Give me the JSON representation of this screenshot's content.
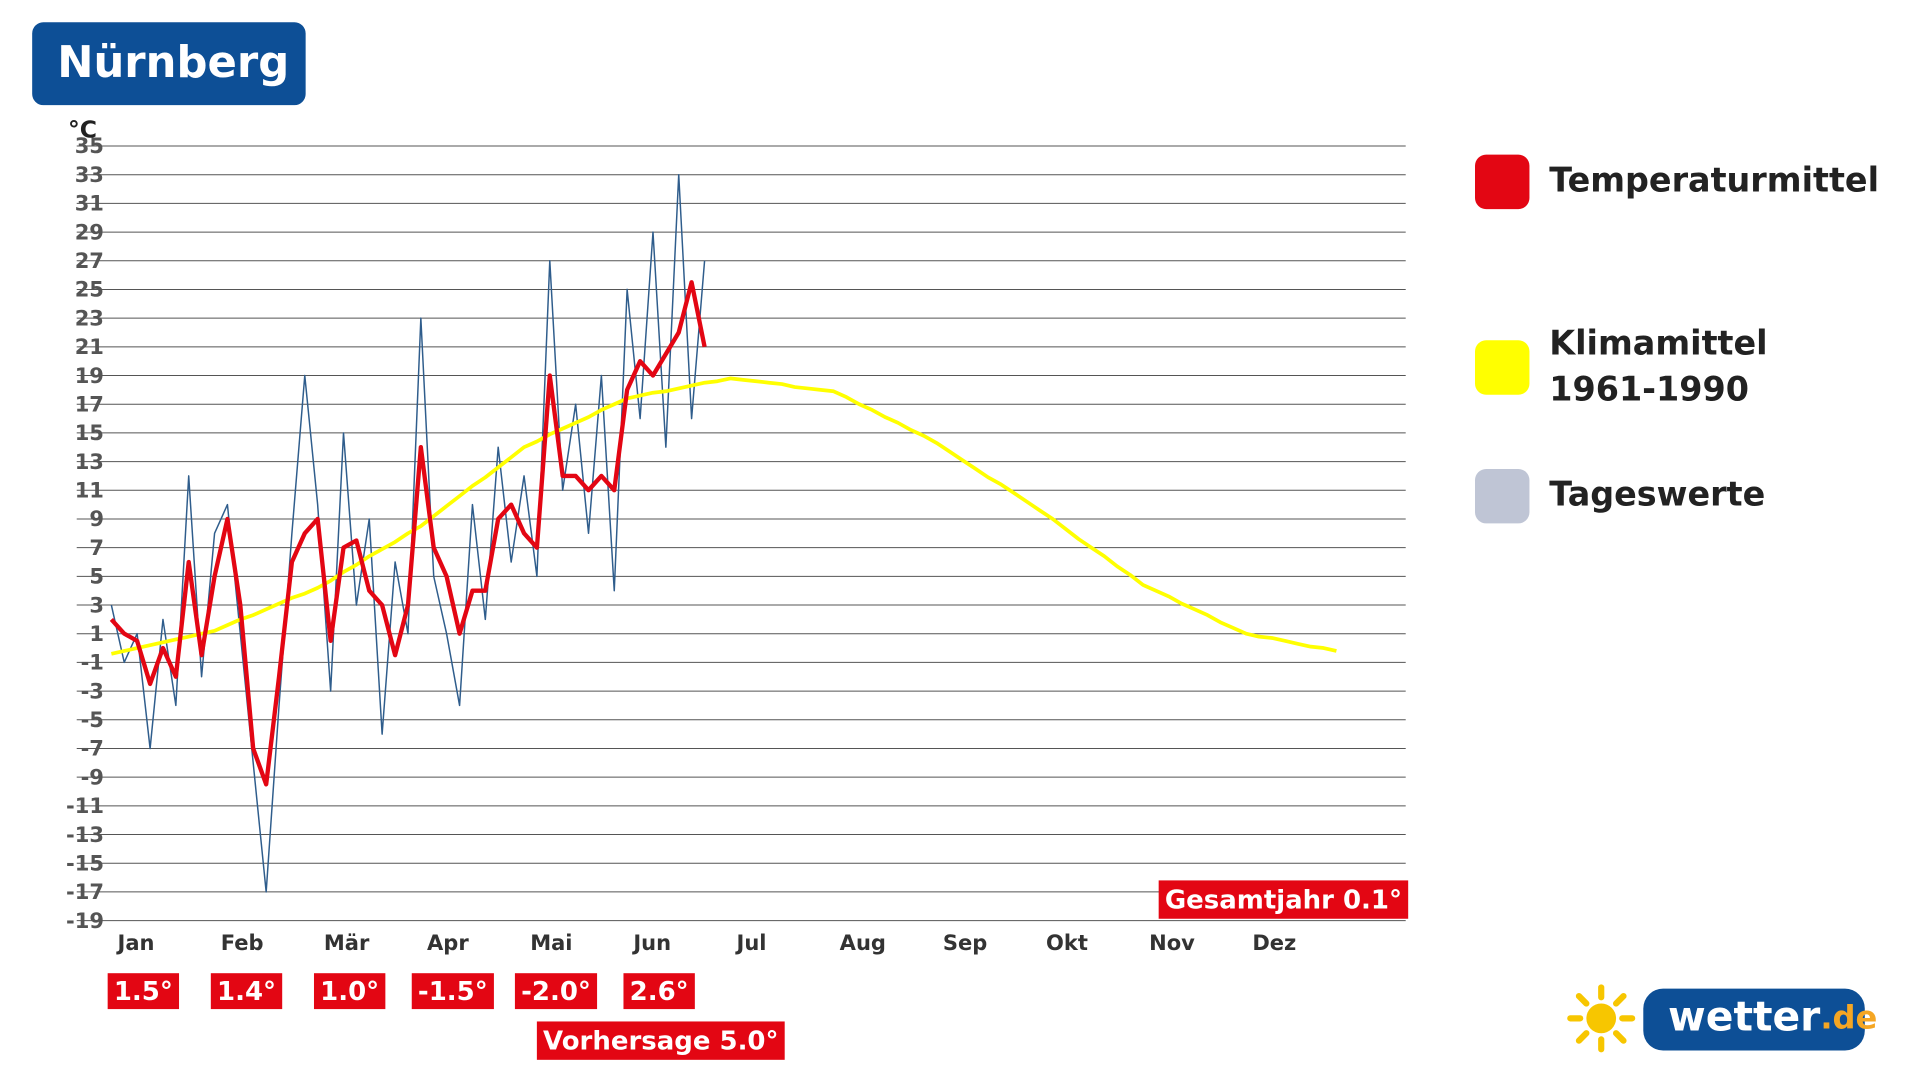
{
  "chart_data": {
    "type": "line",
    "title": "Nürnberg",
    "y_unit_label": "°C",
    "ylim": [
      -19,
      35
    ],
    "yticks": [
      35,
      33,
      31,
      29,
      27,
      25,
      23,
      21,
      19,
      17,
      15,
      13,
      11,
      9,
      7,
      5,
      3,
      1,
      -1,
      -3,
      -5,
      -7,
      -9,
      -11,
      -13,
      -15,
      -17,
      -19
    ],
    "grid": true,
    "legend": "right",
    "categories": [
      "Jan",
      null,
      null,
      null,
      null,
      null,
      null,
      null,
      "Feb",
      null,
      null,
      null,
      null,
      null,
      null,
      null,
      "Mär",
      null,
      null,
      null,
      null,
      null,
      null,
      null,
      "Apr",
      null,
      null,
      null,
      null,
      null,
      null,
      null,
      "Mai",
      null,
      null,
      null,
      null,
      null,
      null,
      null,
      "Jun",
      null,
      null,
      null,
      null,
      null,
      null,
      null,
      "Jul",
      null,
      null,
      null,
      null,
      null,
      null,
      null,
      "Aug",
      null,
      null,
      null,
      null,
      null,
      null,
      null,
      "Sep",
      null,
      null,
      null,
      null,
      null,
      null,
      null,
      "Okt",
      null,
      null,
      null,
      null,
      null,
      null,
      null,
      "Nov",
      null,
      null,
      null,
      null,
      null,
      null,
      null,
      "Dez",
      null,
      null,
      null,
      null,
      null,
      null,
      null
    ],
    "series": [
      {
        "name": "Tageswerte",
        "color": "#bfc5d5",
        "line_color": "#2f5d8c",
        "line_width": 1.2,
        "values": [
          3,
          -1,
          1,
          -7,
          2,
          -4,
          12,
          -2,
          8,
          10,
          1,
          -8,
          -17,
          -4,
          8,
          19,
          10,
          -3,
          15,
          3,
          9,
          -6,
          6,
          1,
          23,
          5,
          1,
          -4,
          10,
          2,
          14,
          6,
          12,
          5,
          27,
          11,
          17,
          8,
          19,
          4,
          25,
          16,
          29,
          14,
          33,
          16,
          27,
          null,
          null,
          null,
          null,
          null,
          null,
          null,
          null,
          null,
          null,
          null,
          null,
          null,
          null,
          null,
          null,
          null,
          null,
          null,
          null,
          null,
          null,
          null,
          null,
          null,
          null,
          null,
          null,
          null,
          null,
          null,
          null,
          null,
          null,
          null,
          null,
          null,
          null,
          null,
          null,
          null,
          null,
          null,
          null,
          null,
          null,
          null,
          null,
          null
        ]
      },
      {
        "name": "Klimamittel 1961-1990",
        "color": "#ffff00",
        "line_color": "#ffff00",
        "line_width": 3,
        "values": [
          -0.4,
          -0.2,
          0,
          0.2,
          0.4,
          0.6,
          0.8,
          1.0,
          1.2,
          1.6,
          2.0,
          2.3,
          2.7,
          3.1,
          3.5,
          3.8,
          4.2,
          4.7,
          5.3,
          5.8,
          6.4,
          6.9,
          7.4,
          8.0,
          8.5,
          9.2,
          9.9,
          10.6,
          11.3,
          11.9,
          12.6,
          13.3,
          14,
          14.4,
          14.9,
          15.3,
          15.7,
          16.1,
          16.6,
          17.0,
          17.4,
          17.6,
          17.8,
          17.9,
          18.1,
          18.3,
          18.5,
          18.6,
          18.8,
          18.7,
          18.6,
          18.5,
          18.4,
          18.2,
          18.1,
          18.0,
          17.9,
          17.5,
          17.0,
          16.6,
          16.1,
          15.7,
          15.2,
          14.8,
          14.3,
          13.7,
          13.1,
          12.5,
          11.9,
          11.4,
          10.8,
          10.2,
          9.6,
          9.0,
          8.3,
          7.6,
          7.0,
          6.4,
          5.7,
          5.1,
          4.4,
          4.0,
          3.6,
          3.1,
          2.7,
          2.3,
          1.8,
          1.4,
          1.0,
          0.8,
          0.7,
          0.5,
          0.3,
          0.1,
          0.0,
          -0.2
        ]
      },
      {
        "name": "Temperaturmittel",
        "color": "#e30613",
        "line_color": "#e30613",
        "line_width": 3.5,
        "values": [
          2,
          1,
          0.5,
          -2.5,
          0,
          -2,
          6,
          -0.5,
          5,
          9,
          3,
          -7,
          -9.5,
          -2,
          6,
          8,
          9,
          0.5,
          7,
          7.5,
          4,
          3,
          -0.5,
          3,
          14,
          7,
          5,
          1,
          4,
          4,
          9,
          10,
          8,
          7,
          19,
          12,
          12,
          11,
          12,
          11,
          18,
          20,
          19,
          20.5,
          22,
          25.5,
          21,
          null,
          null,
          null,
          null,
          null,
          null,
          null,
          null,
          null,
          null,
          null,
          null,
          null,
          null,
          null,
          null,
          null,
          null,
          null,
          null,
          null,
          null,
          null,
          null,
          null,
          null,
          null,
          null,
          null,
          null,
          null,
          null,
          null,
          null,
          null,
          null,
          null,
          null,
          null,
          null,
          null,
          null,
          null,
          null,
          null,
          null,
          null,
          null,
          null
        ]
      }
    ],
    "legend_order": [
      2,
      1,
      0
    ],
    "month_anomalies": [
      "1.5°",
      "1.4°",
      "1.0°",
      "-1.5°",
      "-2.0°",
      "2.6°"
    ],
    "forecast": "Vorhersage 5.0°",
    "year_total": "Gesamtjahr 0.1°",
    "logo": [
      "wetter",
      ".de"
    ]
  }
}
